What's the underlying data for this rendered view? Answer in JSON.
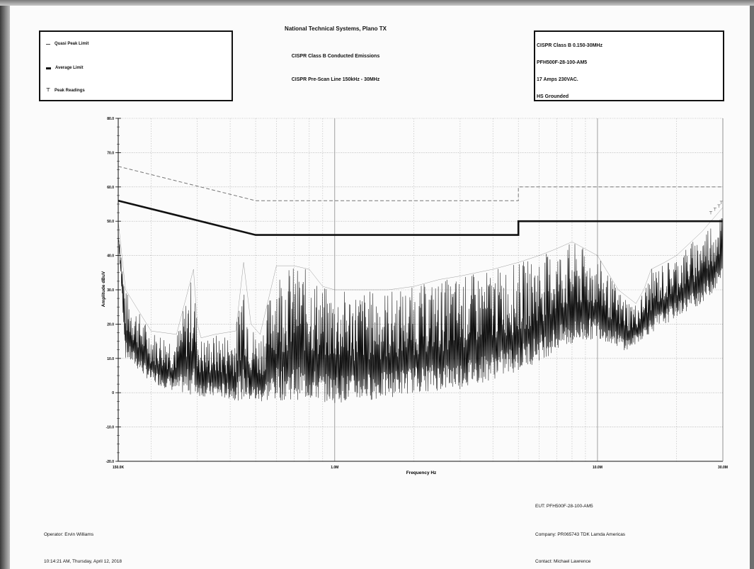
{
  "report": {
    "title": "National Technical Systems, Plano TX",
    "subtitle": "CISPR Class B Conducted Emissions",
    "subtitle2": "CISPR Pre-Scan Line 150kHz - 30MHz"
  },
  "legend": [
    {
      "symbol": "dashed-line",
      "label": "Quasi Peak Limit"
    },
    {
      "symbol": "thick-line",
      "label": "Average Limit"
    },
    {
      "symbol": "peak-marker",
      "label": "Peak Readings"
    }
  ],
  "info_box": [
    "CISPR Class B 0.150-30MHz",
    "PFH500F-28-100-AM5",
    "17 Amps 230VAC.",
    "HS Grounded"
  ],
  "footer": {
    "operator": "Operator: Ervin Williams",
    "timestamp": "10:14:21 AM, Thursday, April 12, 2018",
    "eut": "EUT: PFH500F-28-100-AM5",
    "company": "Company: PR065743 TDK Lamda Americas",
    "contact": "Contact: Michael Lawrence"
  },
  "colors": {
    "trace": "#111111",
    "grid": "#9a9a9a",
    "limit": "#111111",
    "qp_limit": "#777777"
  },
  "chart_data": {
    "type": "line",
    "xlabel": "Frequency Hz",
    "ylabel": "Amplitude dBuV",
    "x_scale": "log",
    "xlim_hz": [
      150000,
      30000000
    ],
    "ylim": [
      -20,
      80
    ],
    "grid": true,
    "y_ticks": [
      {
        "value": 80,
        "label": "80.0"
      },
      {
        "value": 70,
        "label": "70.0"
      },
      {
        "value": 60,
        "label": "60.0"
      },
      {
        "value": 50,
        "label": "50.0"
      },
      {
        "value": 40,
        "label": "40.0"
      },
      {
        "value": 30,
        "label": "30.0"
      },
      {
        "value": 20,
        "label": "20.0"
      },
      {
        "value": 10,
        "label": "10.0"
      },
      {
        "value": 0,
        "label": "0"
      },
      {
        "value": -10,
        "label": "-10.0"
      },
      {
        "value": -20,
        "label": "-20.0"
      }
    ],
    "x_ticks": [
      {
        "value": 150000,
        "label": "150.0K"
      },
      {
        "value": 1000000,
        "label": "1.0M"
      },
      {
        "value": 10000000,
        "label": "10.0M"
      },
      {
        "value": 30000000,
        "label": "30.0M"
      }
    ],
    "series": [
      {
        "name": "Quasi Peak Limit",
        "style": "dashed",
        "x": [
          150000,
          500000,
          500000,
          5000000,
          5000000,
          30000000
        ],
        "y": [
          66,
          56,
          56,
          56,
          60,
          60
        ]
      },
      {
        "name": "Average Limit",
        "style": "thick",
        "x": [
          150000,
          500000,
          500000,
          5000000,
          5000000,
          30000000
        ],
        "y": [
          56,
          46,
          46,
          46,
          50,
          50
        ]
      },
      {
        "name": "Peak Readings",
        "style": "trace",
        "x": [
          150000,
          160000,
          200000,
          250000,
          290000,
          300000,
          310000,
          350000,
          420000,
          450000,
          480000,
          520000,
          600000,
          700000,
          800000,
          900000,
          1000000,
          1300000,
          1600000,
          2000000,
          2500000,
          3000000,
          4000000,
          5000000,
          6000000,
          7000000,
          8000000,
          10000000,
          12000000,
          14000000,
          15000000,
          16000000,
          18000000,
          20000000,
          25000000,
          30000000
        ],
        "y": [
          50,
          30,
          18,
          17,
          36,
          20,
          16,
          17,
          18,
          38,
          20,
          17,
          37,
          37,
          36,
          31,
          30,
          30,
          30,
          31,
          33,
          34,
          36,
          38,
          40,
          42,
          44,
          40,
          30,
          26,
          30,
          36,
          38,
          40,
          47,
          54
        ]
      },
      {
        "name": "Floor",
        "style": "trace",
        "x": [
          150000,
          160000,
          200000,
          250000,
          300000,
          400000,
          500000,
          700000,
          1000000,
          1500000,
          2000000,
          3000000,
          5000000,
          7000000,
          10000000,
          13000000,
          15000000,
          20000000,
          25000000,
          30000000
        ],
        "y": [
          45,
          10,
          3,
          0,
          -1,
          -2,
          -3,
          -2,
          -3,
          -2,
          0,
          1,
          6,
          12,
          16,
          12,
          16,
          22,
          26,
          32
        ]
      }
    ]
  }
}
